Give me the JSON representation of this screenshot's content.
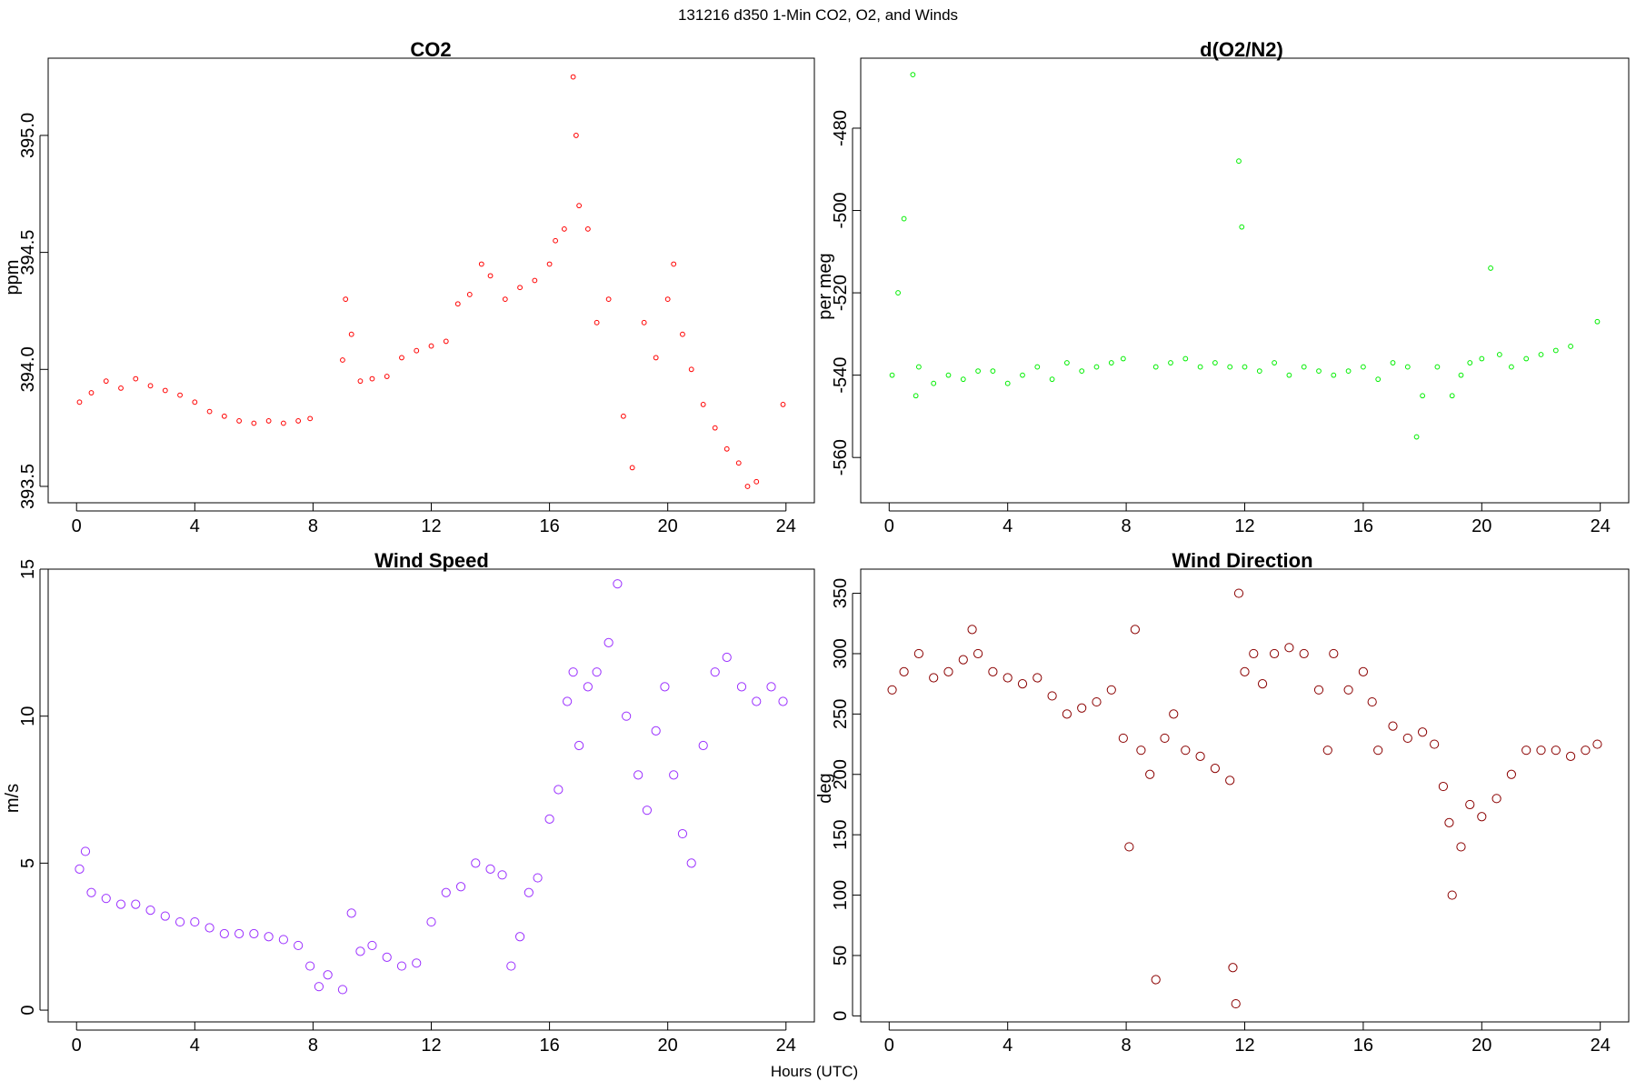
{
  "figure": {
    "suptitle": "131216   d350   1-Min CO2, O2, and Winds",
    "xlabel": "Hours (UTC)"
  },
  "chart_data": [
    {
      "type": "scatter",
      "title": "CO2",
      "xlabel": "",
      "ylabel": "ppm",
      "xlim": [
        -0.96,
        24.96
      ],
      "ylim": [
        393.43,
        395.33
      ],
      "xticks": [
        0,
        4,
        8,
        12,
        16,
        20,
        24
      ],
      "yticks": [
        393.5,
        394.0,
        394.5,
        395.0
      ],
      "ytick_labels": [
        "393.5",
        "394.0",
        "394.5",
        "395.0"
      ],
      "color": "#ff0000",
      "marker": "open-circle",
      "series": [
        {
          "x": [
            0.1,
            0.5,
            1.0,
            1.5,
            2.0,
            2.5,
            3.0,
            3.5,
            4.0,
            4.5,
            5.0,
            5.5,
            6.0,
            6.5,
            7.0,
            7.5,
            7.9,
            9.0,
            9.1,
            9.3,
            9.6,
            10.0,
            10.5,
            11.0,
            11.5,
            12.0,
            12.5,
            12.9,
            13.3,
            13.7,
            14.0,
            14.5,
            15.0,
            15.5,
            16.0,
            16.2,
            16.5,
            16.8,
            16.9,
            17.0,
            17.3,
            17.6,
            18.0,
            18.5,
            18.8,
            19.2,
            19.6,
            20.0,
            20.2,
            20.5,
            20.8,
            21.2,
            21.6,
            22.0,
            22.4,
            22.7,
            23.0,
            23.9
          ],
          "y": [
            393.86,
            393.9,
            393.95,
            393.92,
            393.96,
            393.93,
            393.91,
            393.89,
            393.86,
            393.82,
            393.8,
            393.78,
            393.77,
            393.78,
            393.77,
            393.78,
            393.79,
            394.04,
            394.3,
            394.15,
            393.95,
            393.96,
            393.97,
            394.05,
            394.08,
            394.1,
            394.12,
            394.28,
            394.32,
            394.45,
            394.4,
            394.3,
            394.35,
            394.38,
            394.45,
            394.55,
            394.6,
            395.25,
            395.0,
            394.7,
            394.6,
            394.2,
            394.3,
            393.8,
            393.58,
            394.2,
            394.05,
            394.3,
            394.45,
            394.15,
            394.0,
            393.85,
            393.75,
            393.66,
            393.6,
            393.5,
            393.52,
            393.85
          ]
        }
      ]
    },
    {
      "type": "scatter",
      "title": "d(O2/N2)",
      "xlabel": "",
      "ylabel": "per meg",
      "xlim": [
        -0.96,
        24.96
      ],
      "ylim": [
        -571,
        -463
      ],
      "xticks": [
        0,
        4,
        8,
        12,
        16,
        20,
        24
      ],
      "yticks": [
        -560,
        -540,
        -520,
        -500,
        -480
      ],
      "ytick_labels": [
        "-560",
        "-540",
        "-520",
        "-500",
        "-480"
      ],
      "color": "#00ee00",
      "marker": "open-circle",
      "series": [
        {
          "x": [
            0.1,
            0.3,
            0.5,
            0.8,
            0.9,
            1.0,
            1.5,
            2.0,
            2.5,
            3.0,
            3.5,
            4.0,
            4.5,
            5.0,
            5.5,
            6.0,
            6.5,
            7.0,
            7.5,
            7.9,
            9.0,
            9.5,
            10.0,
            10.5,
            11.0,
            11.5,
            11.8,
            11.9,
            12.0,
            12.5,
            13.0,
            13.5,
            14.0,
            14.5,
            15.0,
            15.5,
            16.0,
            16.5,
            17.0,
            17.5,
            17.8,
            18.0,
            18.5,
            19.0,
            19.3,
            19.6,
            20.0,
            20.3,
            20.6,
            21.0,
            21.5,
            22.0,
            22.5,
            23.0,
            23.9
          ],
          "y": [
            -540,
            -520,
            -502,
            -467,
            -545,
            -538,
            -542,
            -540,
            -541,
            -539,
            -539,
            -542,
            -540,
            -538,
            -541,
            -537,
            -539,
            -538,
            -537,
            -536,
            -538,
            -537,
            -536,
            -538,
            -537,
            -538,
            -488,
            -504,
            -538,
            -539,
            -537,
            -540,
            -538,
            -539,
            -540,
            -539,
            -538,
            -541,
            -537,
            -538,
            -555,
            -545,
            -538,
            -545,
            -540,
            -537,
            -536,
            -514,
            -535,
            -538,
            -536,
            -535,
            -534,
            -533,
            -527
          ]
        }
      ]
    },
    {
      "type": "scatter",
      "title": "Wind Speed",
      "xlabel": "",
      "ylabel": "m/s",
      "xlim": [
        -0.96,
        24.96
      ],
      "ylim": [
        -0.4,
        15.0
      ],
      "xticks": [
        0,
        4,
        8,
        12,
        16,
        20,
        24
      ],
      "yticks": [
        0,
        5,
        10,
        15
      ],
      "ytick_labels": [
        "0",
        "5",
        "10",
        "15"
      ],
      "color": "#9b30ff",
      "marker": "open-circle",
      "series": [
        {
          "x": [
            0.1,
            0.3,
            0.5,
            1.0,
            1.5,
            2.0,
            2.5,
            3.0,
            3.5,
            4.0,
            4.5,
            5.0,
            5.5,
            6.0,
            6.5,
            7.0,
            7.5,
            7.9,
            8.2,
            8.5,
            9.0,
            9.3,
            9.6,
            10.0,
            10.5,
            11.0,
            11.5,
            12.0,
            12.5,
            13.0,
            13.5,
            14.0,
            14.4,
            14.7,
            15.0,
            15.3,
            15.6,
            16.0,
            16.3,
            16.6,
            16.8,
            17.0,
            17.3,
            17.6,
            18.0,
            18.3,
            18.6,
            19.0,
            19.3,
            19.6,
            19.9,
            20.2,
            20.5,
            20.8,
            21.2,
            21.6,
            22.0,
            22.5,
            23.0,
            23.5,
            23.9
          ],
          "y": [
            4.8,
            5.4,
            4.0,
            3.8,
            3.6,
            3.6,
            3.4,
            3.2,
            3.0,
            3.0,
            2.8,
            2.6,
            2.6,
            2.6,
            2.5,
            2.4,
            2.2,
            1.5,
            0.8,
            1.2,
            0.7,
            3.3,
            2.0,
            2.2,
            1.8,
            1.5,
            1.6,
            3.0,
            4.0,
            4.2,
            5.0,
            4.8,
            4.6,
            1.5,
            2.5,
            4.0,
            4.5,
            6.5,
            7.5,
            10.5,
            11.5,
            9.0,
            11.0,
            11.5,
            12.5,
            14.5,
            10.0,
            8.0,
            6.8,
            9.5,
            11.0,
            8.0,
            6.0,
            5.0,
            9.0,
            11.5,
            12.0,
            11.0,
            10.5,
            11.0,
            10.5
          ]
        }
      ]
    },
    {
      "type": "scatter",
      "title": "Wind Direction",
      "xlabel": "",
      "ylabel": "deg",
      "xlim": [
        -0.96,
        24.96
      ],
      "ylim": [
        -5,
        370
      ],
      "xticks": [
        0,
        4,
        8,
        12,
        16,
        20,
        24
      ],
      "yticks": [
        0,
        50,
        100,
        150,
        200,
        250,
        300,
        350
      ],
      "ytick_labels": [
        "0",
        "50",
        "100",
        "150",
        "200",
        "250",
        "300",
        "350"
      ],
      "color": "#8b0000",
      "marker": "open-circle",
      "series": [
        {
          "x": [
            0.1,
            0.5,
            1.0,
            1.5,
            2.0,
            2.5,
            2.8,
            3.0,
            3.5,
            4.0,
            4.5,
            5.0,
            5.5,
            6.0,
            6.5,
            7.0,
            7.5,
            7.9,
            8.1,
            8.3,
            8.5,
            8.8,
            9.0,
            9.3,
            9.6,
            10.0,
            10.5,
            11.0,
            11.5,
            11.6,
            11.7,
            11.8,
            12.0,
            12.3,
            12.6,
            13.0,
            13.5,
            14.0,
            14.5,
            14.8,
            15.0,
            15.5,
            16.0,
            16.3,
            16.5,
            17.0,
            17.5,
            18.0,
            18.4,
            18.7,
            18.9,
            19.0,
            19.3,
            19.6,
            20.0,
            20.5,
            21.0,
            21.5,
            22.0,
            22.5,
            23.0,
            23.5,
            23.9
          ],
          "y": [
            270,
            285,
            300,
            280,
            285,
            295,
            320,
            300,
            285,
            280,
            275,
            280,
            265,
            250,
            255,
            260,
            270,
            230,
            140,
            320,
            220,
            200,
            30,
            230,
            250,
            220,
            215,
            205,
            195,
            40,
            10,
            350,
            285,
            300,
            275,
            300,
            305,
            300,
            270,
            220,
            300,
            270,
            285,
            260,
            220,
            240,
            230,
            235,
            225,
            190,
            160,
            100,
            140,
            175,
            165,
            180,
            200,
            220,
            220,
            220,
            215,
            220,
            225
          ]
        }
      ]
    }
  ]
}
